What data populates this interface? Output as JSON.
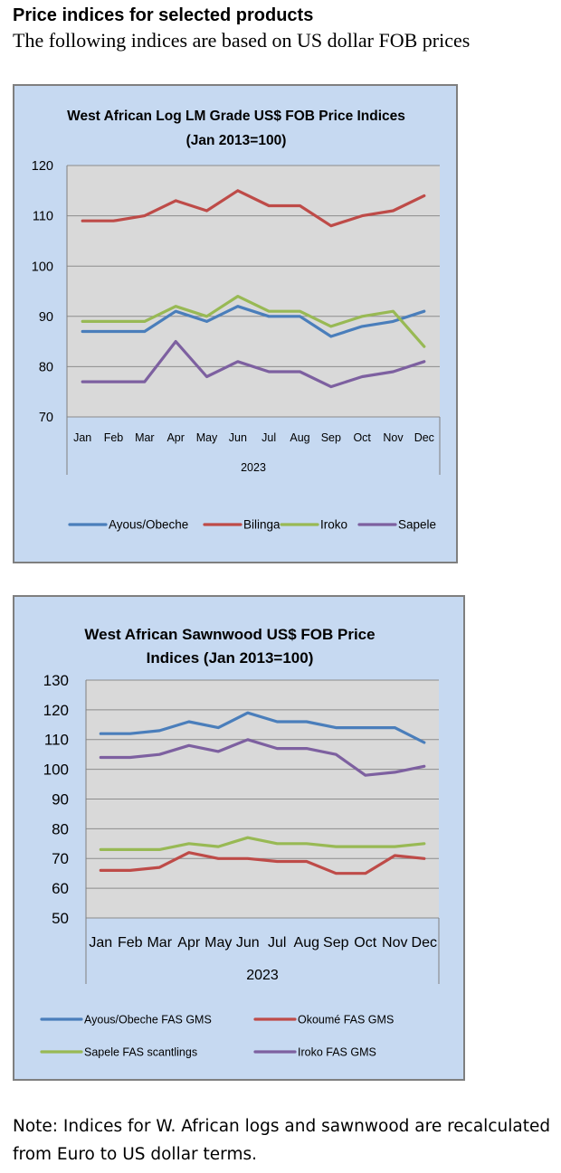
{
  "page": {
    "title": "Price indices for selected products",
    "subtitle": "The following indices are based on US dollar FOB prices"
  },
  "note": {
    "line1": "Note: Indices for W. African logs and sawnwood are recalculated",
    "line2": "from Euro to US dollar terms."
  },
  "colors": {
    "blue": "#4a7ebb",
    "red": "#be4b48",
    "green": "#98b954",
    "purple": "#7d60a0",
    "plot_bg": "#d9d9d9",
    "chart_bg": "#c6d9f1"
  },
  "chart_data": [
    {
      "type": "line",
      "title": [
        "West African Log LM Grade US$ FOB Price Indices",
        "(Jan 2013=100)"
      ],
      "categories": [
        "Jan",
        "Feb",
        "Mar",
        "Apr",
        "May",
        "Jun",
        "Jul",
        "Aug",
        "Sep",
        "Oct",
        "Nov",
        "Dec"
      ],
      "xlabel": "2023",
      "ylabel": "",
      "ylim": [
        70,
        120
      ],
      "yticks": [
        70,
        80,
        90,
        100,
        110,
        120
      ],
      "grid": true,
      "legend_placement": "bottom",
      "series": [
        {
          "name": "Ayous/Obeche",
          "color": "#4a7ebb",
          "values": [
            87,
            87,
            87,
            91,
            89,
            92,
            90,
            90,
            86,
            88,
            89,
            91
          ]
        },
        {
          "name": "Bilinga",
          "color": "#be4b48",
          "values": [
            109,
            109,
            110,
            113,
            111,
            115,
            112,
            112,
            108,
            110,
            111,
            114
          ]
        },
        {
          "name": "Iroko",
          "color": "#98b954",
          "values": [
            89,
            89,
            89,
            92,
            90,
            94,
            91,
            91,
            88,
            90,
            91,
            84
          ]
        },
        {
          "name": "Sapele",
          "color": "#7d60a0",
          "values": [
            77,
            77,
            77,
            85,
            78,
            81,
            79,
            79,
            76,
            78,
            79,
            81
          ]
        }
      ]
    },
    {
      "type": "line",
      "title": [
        "West African Sawnwood US$ FOB Price",
        "Indices (Jan 2013=100)"
      ],
      "categories": [
        "Jan",
        "Feb",
        "Mar",
        "Apr",
        "May",
        "Jun",
        "Jul",
        "Aug",
        "Sep",
        "Oct",
        "Nov",
        "Dec"
      ],
      "xlabel": "2023",
      "ylabel": "",
      "ylim": [
        50,
        130
      ],
      "yticks": [
        50,
        60,
        70,
        80,
        90,
        100,
        110,
        120,
        130
      ],
      "grid": true,
      "legend_placement": "bottom",
      "series": [
        {
          "name": "Ayous/Obeche  FAS GMS",
          "color": "#4a7ebb",
          "values": [
            112,
            112,
            113,
            116,
            114,
            119,
            116,
            116,
            114,
            114,
            114,
            109
          ]
        },
        {
          "name": "Okoumé  FAS GMS",
          "color": "#be4b48",
          "values": [
            66,
            66,
            67,
            72,
            70,
            70,
            69,
            69,
            65,
            65,
            71,
            70
          ]
        },
        {
          "name": "Sapele FAS scantlings",
          "color": "#98b954",
          "values": [
            73,
            73,
            73,
            75,
            74,
            77,
            75,
            75,
            74,
            74,
            74,
            75
          ]
        },
        {
          "name": "Iroko FAS GMS",
          "color": "#7d60a0",
          "values": [
            104,
            104,
            105,
            108,
            106,
            110,
            107,
            107,
            105,
            98,
            99,
            101
          ]
        }
      ]
    }
  ]
}
